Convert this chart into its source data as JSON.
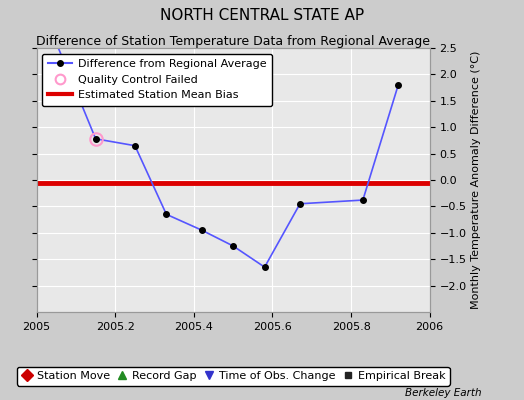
{
  "title": "NORTH CENTRAL STATE AP",
  "subtitle": "Difference of Station Temperature Data from Regional Average",
  "ylabel": "Monthly Temperature Anomaly Difference (°C)",
  "credit": "Berkeley Earth",
  "xlim": [
    2005.0,
    2006.0
  ],
  "ylim": [
    -2.5,
    2.5
  ],
  "yticks": [
    -2,
    -1.5,
    -1,
    -0.5,
    0,
    0.5,
    1,
    1.5,
    2,
    2.5
  ],
  "xticks": [
    2005.0,
    2005.2,
    2005.4,
    2005.6,
    2005.8,
    2006.0
  ],
  "line_x": [
    2005.0,
    2005.15,
    2005.25,
    2005.33,
    2005.42,
    2005.5,
    2005.58,
    2005.67,
    2005.83,
    2005.92
  ],
  "line_y": [
    3.5,
    0.78,
    0.65,
    -0.65,
    -0.95,
    -1.25,
    -1.65,
    -0.45,
    -0.38,
    1.8
  ],
  "markers_x": [
    2005.15,
    2005.25,
    2005.33,
    2005.42,
    2005.5,
    2005.58,
    2005.67,
    2005.83,
    2005.92
  ],
  "markers_y": [
    0.78,
    0.65,
    -0.65,
    -0.95,
    -1.25,
    -1.65,
    -0.45,
    -0.38,
    1.8
  ],
  "bias_y": -0.05,
  "qc_x": [
    2005.15
  ],
  "qc_y": [
    0.78
  ],
  "line_color": "#5555ff",
  "bias_color": "#dd0000",
  "qc_color": "#ff99cc",
  "marker_color": "#000000",
  "bg_color": "#e8e8e8",
  "grid_color": "#ffffff",
  "legend1_entries": [
    "Difference from Regional Average",
    "Quality Control Failed",
    "Estimated Station Mean Bias"
  ],
  "legend2_entries": [
    "Station Move",
    "Record Gap",
    "Time of Obs. Change",
    "Empirical Break"
  ],
  "title_fontsize": 11,
  "subtitle_fontsize": 9,
  "tick_fontsize": 8,
  "legend_fontsize": 8
}
